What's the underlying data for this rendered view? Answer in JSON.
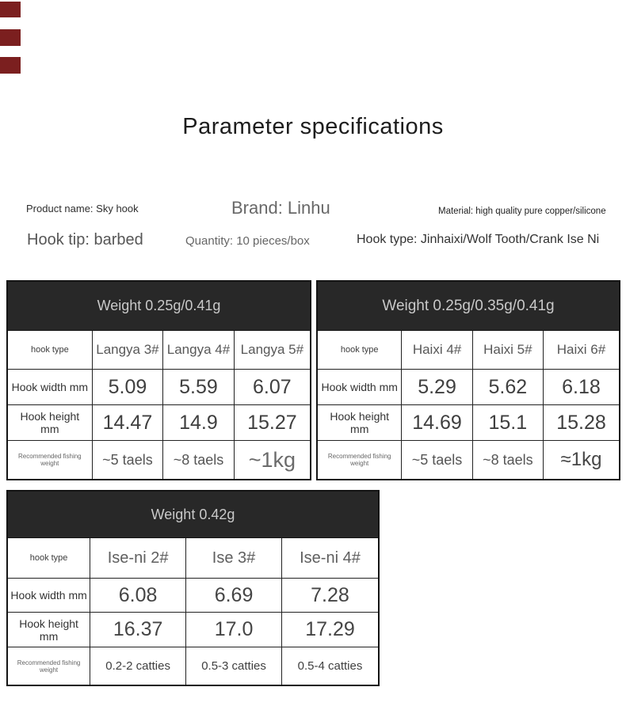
{
  "title": "Parameter specifications",
  "info": {
    "product_name": "Product name: Sky hook",
    "brand": "Brand: Linhu",
    "material": "Material: high quality pure copper/silicone",
    "hook_tip": "Hook tip: barbed",
    "quantity": "Quantity: 10 pieces/box",
    "hook_type": "Hook type: Jinhaixi/Wolf Tooth/Crank Ise Ni"
  },
  "tables": [
    {
      "header": "Weight 0.25g/0.41g",
      "rows": [
        [
          "hook type",
          "Langya 3#",
          "Langya 4#",
          "Langya 5#"
        ],
        [
          "Hook width mm",
          "5.09",
          "5.59",
          "6.07"
        ],
        [
          "Hook height mm",
          "14.47",
          "14.9",
          "15.27"
        ],
        [
          "Recommended fishing weight",
          "~5 taels",
          "~8 taels",
          "~1kg"
        ]
      ]
    },
    {
      "header": "Weight 0.25g/0.35g/0.41g",
      "rows": [
        [
          "hook type",
          "Haixi 4#",
          "Haixi 5#",
          "Haixi 6#"
        ],
        [
          "Hook width mm",
          "5.29",
          "5.62",
          "6.18"
        ],
        [
          "Hook height mm",
          "14.69",
          "15.1",
          "15.28"
        ],
        [
          "Recommended fishing weight",
          "~5 taels",
          "~8 taels",
          "≈1kg"
        ]
      ]
    },
    {
      "header": "Weight 0.42g",
      "rows": [
        [
          "hook type",
          "Ise-ni 2#",
          "Ise 3#",
          "Ise-ni 4#"
        ],
        [
          "Hook width mm",
          "6.08",
          "6.69",
          "7.28"
        ],
        [
          "Hook height mm",
          "16.37",
          "17.0",
          "17.29"
        ],
        [
          "Recommended fishing weight",
          "0.2-2 catties",
          "0.5-3 catties",
          "0.5-4 catties"
        ]
      ]
    }
  ],
  "colors": {
    "background": "#ffffff",
    "table_header_bg": "#282828",
    "table_header_text": "#c9c9c9",
    "table_border": "#1a1a1a",
    "corner_tag": "#7b1f1f"
  }
}
